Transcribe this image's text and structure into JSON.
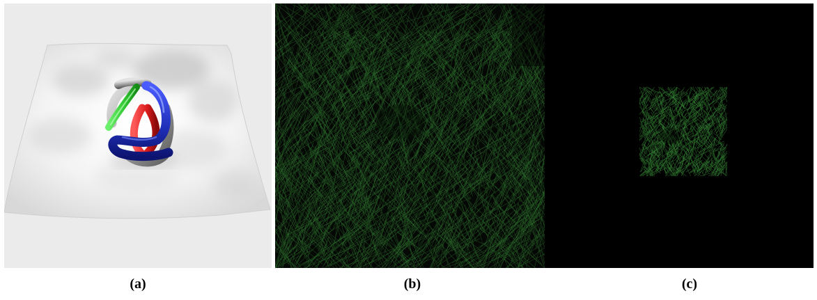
{
  "figure": {
    "panels": [
      {
        "id": "a",
        "caption": "(a)",
        "content": "3d-render",
        "colors": {
          "background": "#ebebeb",
          "tube_grey": "#9a9a9a",
          "tube_red": "#d91a1a",
          "tube_green": "#2ec42e",
          "tube_blue": "#1f2fb8"
        }
      },
      {
        "id": "b",
        "caption": "(b)",
        "content": "dense-fiber-texture",
        "colors": {
          "background": "#050805",
          "fiber": "#2f7a2f"
        }
      },
      {
        "id": "c",
        "caption": "(c)",
        "content": "small-fiber-patch",
        "colors": {
          "background": "#000000",
          "fiber": "#2f7a2f"
        }
      }
    ]
  }
}
